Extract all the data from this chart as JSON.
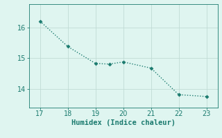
{
  "x": [
    17,
    18,
    19,
    19.5,
    20,
    21,
    22,
    23
  ],
  "y": [
    16.2,
    15.38,
    14.83,
    14.81,
    14.88,
    14.68,
    13.82,
    13.76
  ],
  "line_color": "#1a7a6e",
  "marker": "D",
  "marker_size": 2.5,
  "linewidth": 1.0,
  "linestyle": "dotted",
  "xlabel": "Humidex (Indice chaleur)",
  "xlabel_fontsize": 7.5,
  "background_color": "#dff5f0",
  "grid_color": "#c0dbd5",
  "tick_color": "#1a7a6e",
  "xlim": [
    16.6,
    23.4
  ],
  "ylim": [
    13.4,
    16.75
  ],
  "xticks": [
    17,
    18,
    19,
    20,
    21,
    22,
    23
  ],
  "yticks": [
    14,
    15,
    16
  ],
  "spine_color": "#1a7a6e",
  "tick_fontsize": 7.0
}
